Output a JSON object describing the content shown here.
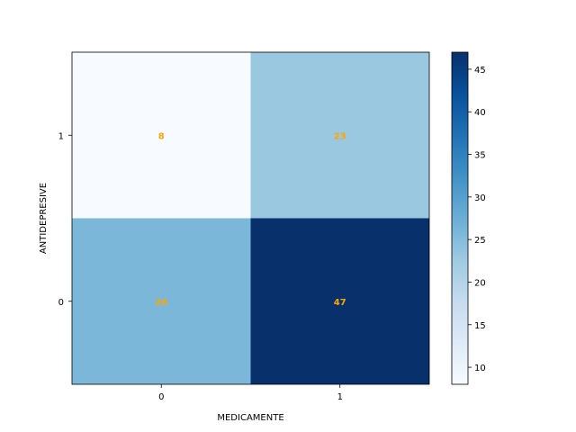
{
  "chart_data": {
    "type": "heatmap",
    "title": "",
    "xlabel": "MEDICAMENTE",
    "ylabel": "ANTIDEPRESIVE",
    "x_categories": [
      "0",
      "1"
    ],
    "y_categories": [
      "1",
      "0"
    ],
    "matrix": [
      [
        8,
        23
      ],
      [
        26,
        47
      ]
    ],
    "colormap": "Blues",
    "vmin": 8,
    "vmax": 47,
    "colorbar_ticks": [
      10,
      15,
      20,
      25,
      30,
      35,
      40,
      45
    ],
    "annotation_color": "#ffa500"
  }
}
